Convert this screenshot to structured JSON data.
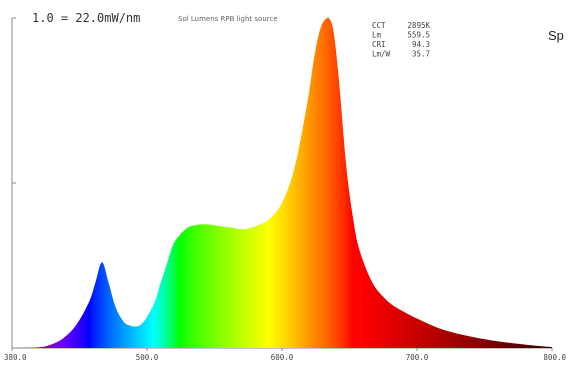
{
  "chart_data": {
    "type": "area",
    "title": "1.0 = 22.0mW/nm",
    "subtitle": "Sol Lumens RPB light source",
    "partial_title": "Sp",
    "stats": [
      {
        "label": "CCT",
        "value": "2895K"
      },
      {
        "label": "Lm",
        "value": "559.5"
      },
      {
        "label": "CRI",
        "value": "94.3"
      },
      {
        "label": "Lm/W",
        "value": "35.7"
      }
    ],
    "xlabel": "",
    "ylabel": "",
    "x_tick_labels": [
      "380.0",
      "500.0",
      "600.0",
      "700.0",
      "800.0"
    ],
    "xlim": [
      380,
      800
    ],
    "ylim": [
      0,
      1.0
    ],
    "y_ticks": [
      0,
      0.5,
      1.0
    ],
    "grid": false,
    "series": [
      {
        "x": [
          380,
          400,
          410,
          420,
          430,
          440,
          445,
          450,
          455,
          460,
          465,
          470,
          480,
          490,
          495,
          500,
          505,
          510,
          515,
          520,
          530,
          540,
          550,
          560,
          570,
          580,
          590,
          600,
          610,
          615,
          620,
          625,
          628,
          630,
          632,
          635,
          640,
          645,
          650,
          660,
          670,
          680,
          700,
          720,
          750,
          780,
          800
        ],
        "y": [
          0,
          0.002,
          0.01,
          0.03,
          0.07,
          0.14,
          0.2,
          0.26,
          0.2,
          0.13,
          0.09,
          0.07,
          0.07,
          0.13,
          0.19,
          0.25,
          0.31,
          0.34,
          0.36,
          0.37,
          0.375,
          0.37,
          0.365,
          0.36,
          0.37,
          0.39,
          0.44,
          0.55,
          0.75,
          0.88,
          0.97,
          1.0,
          0.99,
          0.96,
          0.9,
          0.78,
          0.55,
          0.4,
          0.3,
          0.2,
          0.15,
          0.12,
          0.08,
          0.05,
          0.025,
          0.01,
          0.003
        ]
      }
    ]
  }
}
